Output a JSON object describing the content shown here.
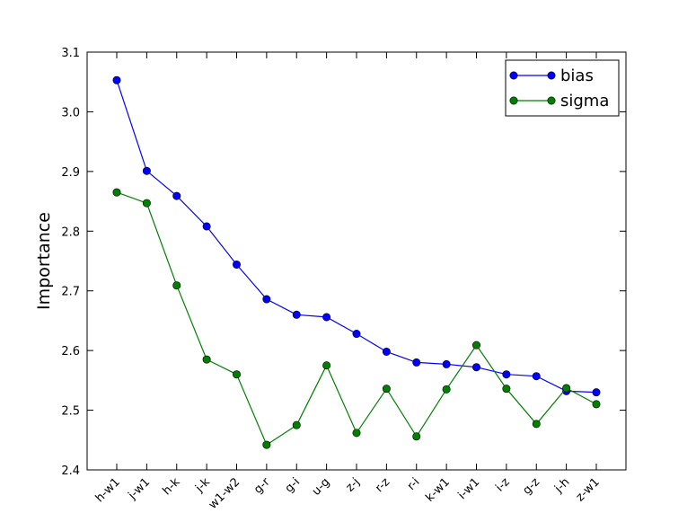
{
  "chart_data": {
    "type": "line",
    "title": "",
    "xlabel": "",
    "ylabel": "Importance",
    "ylim": [
      2.4,
      3.1
    ],
    "yticks": [
      "2.4",
      "2.5",
      "2.6",
      "2.7",
      "2.8",
      "2.9",
      "3.0",
      "3.1"
    ],
    "categories": [
      "h-w1",
      "j-w1",
      "h-k",
      "j-k",
      "w1-w2",
      "g-r",
      "g-i",
      "u-g",
      "z-j",
      "r-z",
      "r-i",
      "k-w1",
      "i-w1",
      "i-z",
      "g-z",
      "j-h",
      "z-w1"
    ],
    "grid": false,
    "legend_position": "top-right",
    "series": [
      {
        "name": "bias",
        "color": "#0000ff",
        "values": [
          3.053,
          2.901,
          2.859,
          2.808,
          2.744,
          2.686,
          2.66,
          2.656,
          2.628,
          2.598,
          2.58,
          2.577,
          2.572,
          2.56,
          2.557,
          2.532,
          2.53
        ]
      },
      {
        "name": "sigma",
        "color": "#007f00",
        "values": [
          2.865,
          2.847,
          2.709,
          2.585,
          2.56,
          2.442,
          2.475,
          2.575,
          2.462,
          2.536,
          2.456,
          2.535,
          2.609,
          2.536,
          2.477,
          2.537,
          2.51
        ]
      }
    ]
  }
}
